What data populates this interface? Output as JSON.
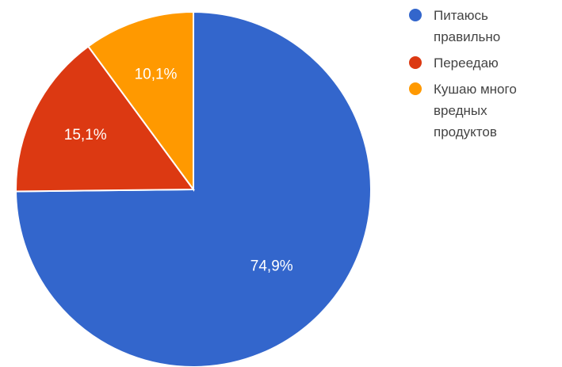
{
  "chart_data": {
    "type": "pie",
    "slices": [
      {
        "label": "Питаюсь\nправильно",
        "value": 74.9,
        "display": "74,9%",
        "color": "#3366cc"
      },
      {
        "label": "Переедаю",
        "value": 15.1,
        "display": "15,1%",
        "color": "#dc3912"
      },
      {
        "label": "Кушаю много\nвредных\nпродуктов",
        "value": 10.1,
        "display": "10,1%",
        "color": "#ff9900"
      }
    ],
    "legend_position": "right"
  }
}
